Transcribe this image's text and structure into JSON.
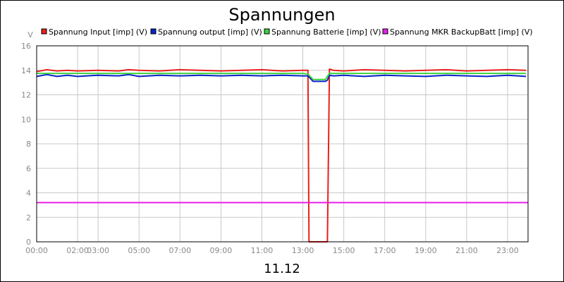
{
  "chart_data": {
    "type": "line",
    "title": "Spannungen",
    "xlabel": "11.12",
    "ylabel": "V",
    "ylim": [
      0,
      16
    ],
    "xlim": [
      0,
      24
    ],
    "y_ticks": [
      0,
      2,
      4,
      6,
      8,
      10,
      12,
      14,
      16
    ],
    "x_ticks": [
      {
        "value": 0,
        "label": "00:00"
      },
      {
        "value": 2,
        "label": "02:00"
      },
      {
        "value": 3,
        "label": "03:00"
      },
      {
        "value": 5,
        "label": "05:00"
      },
      {
        "value": 7,
        "label": "07:00"
      },
      {
        "value": 9,
        "label": "09:00"
      },
      {
        "value": 11,
        "label": "11:00"
      },
      {
        "value": 13,
        "label": "13:00"
      },
      {
        "value": 15,
        "label": "15:00"
      },
      {
        "value": 17,
        "label": "17:00"
      },
      {
        "value": 19,
        "label": "19:00"
      },
      {
        "value": 21,
        "label": "21:00"
      },
      {
        "value": 23,
        "label": "23:00"
      }
    ],
    "grid": true,
    "legend_position": "top",
    "series": [
      {
        "name": "Spannung Input [imp] (V)",
        "color": "#e8201a",
        "x": [
          0,
          0.5,
          1,
          1.5,
          2,
          3,
          4,
          4.5,
          5,
          6,
          7,
          8,
          9,
          10,
          11,
          12,
          13,
          13.25,
          13.3,
          14.2,
          14.3,
          14.5,
          15,
          16,
          17,
          18,
          19,
          20,
          21,
          22,
          23,
          23.9
        ],
        "y": [
          13.9,
          14.05,
          13.95,
          14.0,
          13.95,
          14.0,
          13.95,
          14.05,
          14.0,
          13.95,
          14.05,
          14.0,
          13.95,
          14.0,
          14.05,
          13.95,
          14.0,
          14.0,
          0,
          0,
          14.1,
          14.0,
          13.95,
          14.05,
          14.0,
          13.95,
          14.0,
          14.05,
          13.95,
          14.0,
          14.05,
          14.0
        ]
      },
      {
        "name": "Spannung output [imp] (V)",
        "color": "#0a22c8",
        "x": [
          0,
          0.5,
          1,
          1.5,
          2,
          3,
          4,
          4.5,
          5,
          6,
          7,
          8,
          9,
          10,
          11,
          12,
          13,
          13.25,
          13.5,
          14.1,
          14.2,
          14.3,
          14.5,
          15,
          16,
          17,
          18,
          19,
          20,
          21,
          22,
          23,
          23.9
        ],
        "y": [
          13.5,
          13.65,
          13.5,
          13.6,
          13.5,
          13.6,
          13.55,
          13.65,
          13.5,
          13.6,
          13.55,
          13.6,
          13.55,
          13.6,
          13.55,
          13.6,
          13.55,
          13.55,
          13.1,
          13.1,
          13.2,
          13.6,
          13.55,
          13.6,
          13.5,
          13.6,
          13.55,
          13.5,
          13.6,
          13.55,
          13.5,
          13.6,
          13.5
        ]
      },
      {
        "name": "Spannung Batterie [imp] (V)",
        "color": "#3cd23c",
        "x": [
          0,
          1,
          2,
          3,
          4,
          5,
          6,
          7,
          8,
          9,
          10,
          11,
          12,
          13,
          13.25,
          13.5,
          14.1,
          14.3,
          15,
          16,
          17,
          18,
          19,
          20,
          21,
          22,
          23,
          23.9
        ],
        "y": [
          13.75,
          13.75,
          13.75,
          13.75,
          13.75,
          13.75,
          13.75,
          13.75,
          13.75,
          13.75,
          13.75,
          13.75,
          13.75,
          13.75,
          13.7,
          13.25,
          13.25,
          13.75,
          13.75,
          13.75,
          13.75,
          13.75,
          13.75,
          13.75,
          13.75,
          13.75,
          13.75,
          13.75
        ]
      },
      {
        "name": "Spannung MKR BackupBatt [imp] (V)",
        "color": "#e81ee8",
        "x": [
          0,
          24
        ],
        "y": [
          3.2,
          3.2
        ]
      }
    ]
  }
}
